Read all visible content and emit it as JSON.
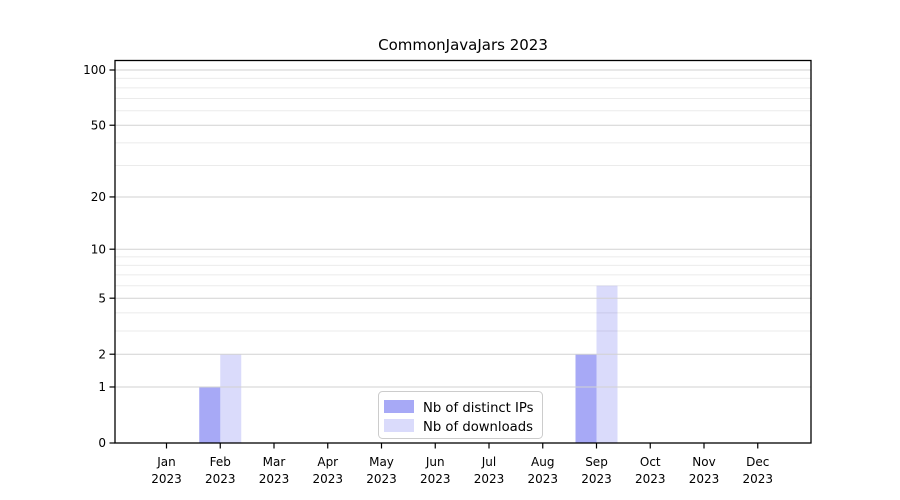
{
  "figure": {
    "background": "#ffffff"
  },
  "chart_data": {
    "type": "bar",
    "title": "CommonJavaJars 2023",
    "xlabel": "",
    "ylabel": "",
    "yscale": "log1p",
    "ylim": [
      0,
      115
    ],
    "grid": true,
    "legend_position": "lower center",
    "x_labels": [
      {
        "line1": "Jan",
        "line2": "2023"
      },
      {
        "line1": "Feb",
        "line2": "2023"
      },
      {
        "line1": "Mar",
        "line2": "2023"
      },
      {
        "line1": "Apr",
        "line2": "2023"
      },
      {
        "line1": "May",
        "line2": "2023"
      },
      {
        "line1": "Jun",
        "line2": "2023"
      },
      {
        "line1": "Jul",
        "line2": "2023"
      },
      {
        "line1": "Aug",
        "line2": "2023"
      },
      {
        "line1": "Sep",
        "line2": "2023"
      },
      {
        "line1": "Oct",
        "line2": "2023"
      },
      {
        "line1": "Nov",
        "line2": "2023"
      },
      {
        "line1": "Dec",
        "line2": "2023"
      }
    ],
    "y_major_ticks": [
      0,
      1,
      2,
      5,
      10,
      20,
      50,
      100
    ],
    "y_major_tick_labels": [
      "0",
      "1",
      "2",
      "5",
      "10",
      "20",
      "50",
      "100"
    ],
    "y_minor_gridlines": [
      3,
      4,
      6,
      7,
      8,
      9,
      30,
      40,
      60,
      70,
      80,
      90
    ],
    "series": [
      {
        "name": "Nb of distinct IPs",
        "values": [
          0,
          1,
          0,
          0,
          0,
          0,
          0,
          0,
          2,
          0,
          0,
          0
        ],
        "fill": "#0a10e6",
        "fill_opacity": 0.36
      },
      {
        "name": "Nb of downloads",
        "values": [
          0,
          2,
          0,
          0,
          0,
          0,
          0,
          0,
          6,
          0,
          0,
          0
        ],
        "fill": "#0a10e6",
        "fill_opacity": 0.15
      }
    ]
  },
  "colors": {
    "grid_major": "#d2d2d2",
    "grid_minor": "#ebebeb",
    "spine": "#000000",
    "legend_border": "#cccccc",
    "legend_bg": "#ffffff"
  }
}
